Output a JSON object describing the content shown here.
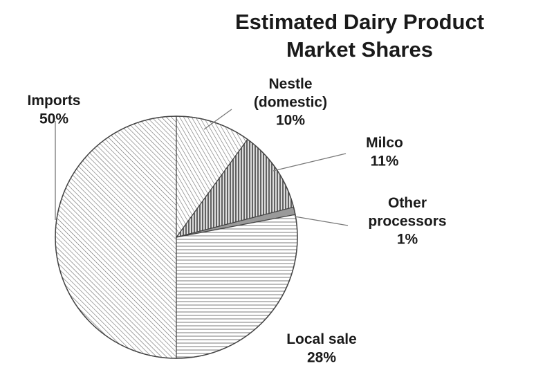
{
  "chart_data": {
    "type": "pie",
    "title": "Estimated Dairy Product Market Shares",
    "slices": [
      {
        "name": "Imports",
        "value": 50,
        "label_lines": [
          "Imports",
          "50%"
        ],
        "pattern": "diag-fine"
      },
      {
        "name": "Nestle (domestic)",
        "value": 10,
        "label_lines": [
          "Nestle",
          "(domestic)",
          "10%"
        ],
        "pattern": "diag-steep"
      },
      {
        "name": "Milco",
        "value": 11,
        "label_lines": [
          "Milco",
          "11%"
        ],
        "pattern": "vertical"
      },
      {
        "name": "Other processors",
        "value": 1,
        "label_lines": [
          "Other",
          "processors",
          "1%"
        ],
        "pattern": "solid-gray"
      },
      {
        "name": "Local sale",
        "value": 28,
        "label_lines": [
          "Local sale",
          "28%"
        ],
        "pattern": "horizontal"
      }
    ],
    "legend": "none",
    "colors": {
      "outline": "#444444",
      "hatch": "#6a6a6a",
      "gray_fill": "#9a9a9a"
    }
  }
}
